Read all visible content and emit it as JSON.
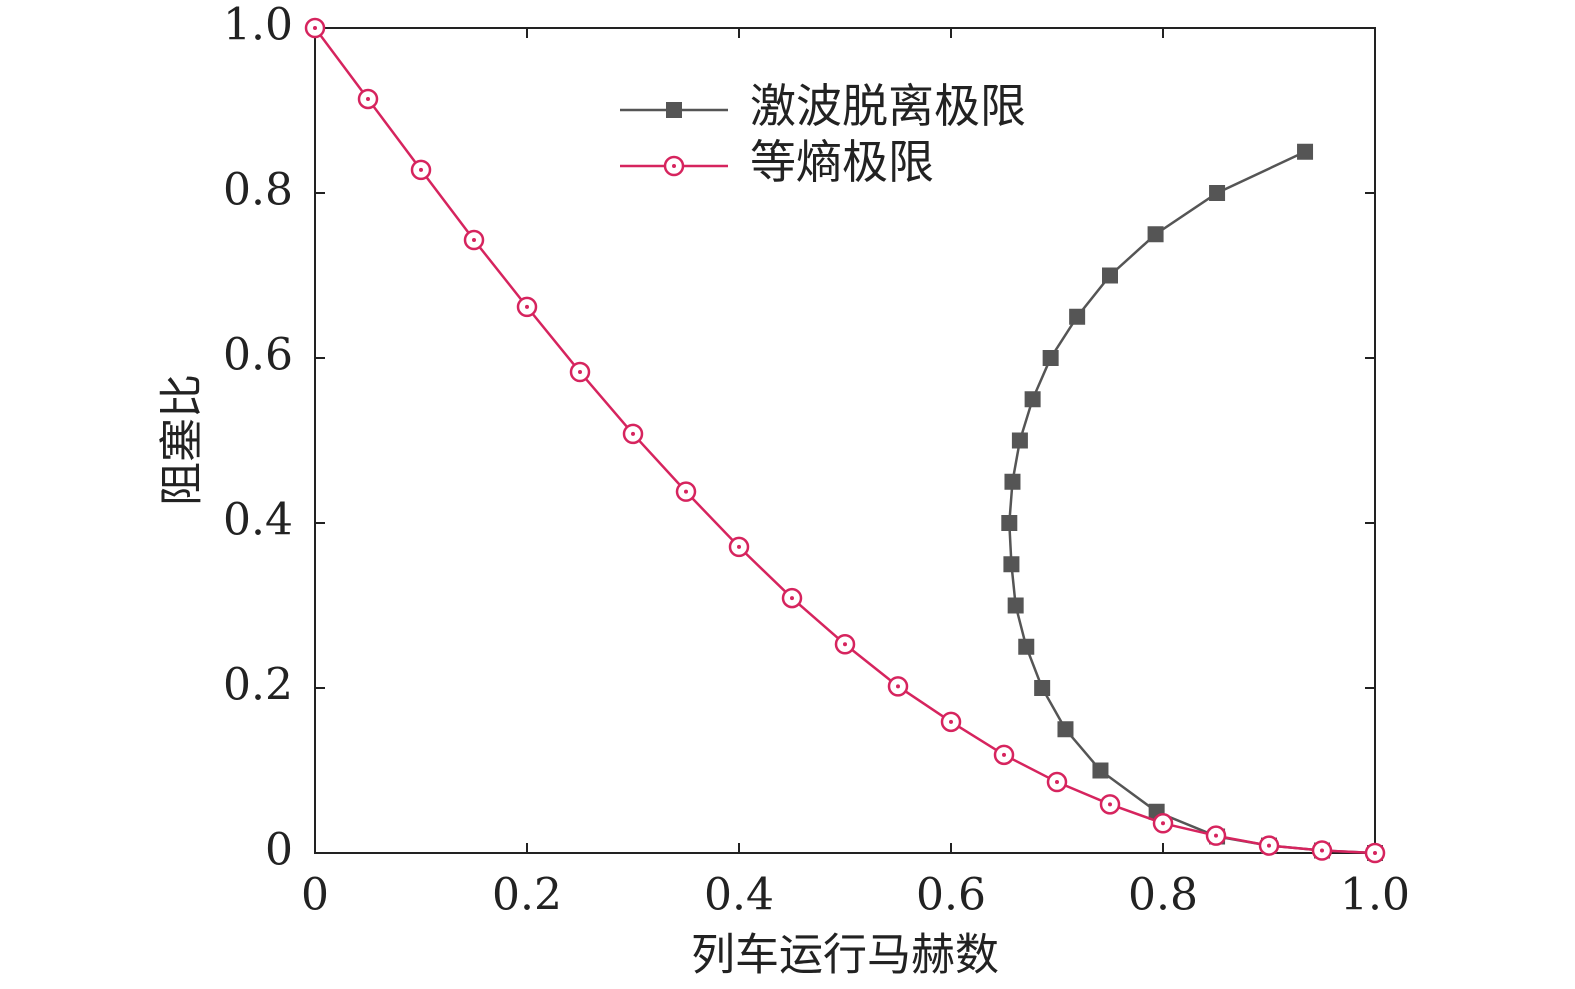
{
  "chart_data": {
    "type": "line",
    "x_label": "列车运行马赫数",
    "y_label": "阻塞比",
    "xlim": [
      0,
      1
    ],
    "ylim": [
      0,
      1
    ],
    "xticks": [
      0,
      0.2,
      0.4,
      0.6,
      0.8,
      {
        "value": 1,
        "label": "1.0"
      }
    ],
    "yticks": [
      0,
      0.2,
      0.4,
      0.6,
      0.8,
      {
        "value": 1,
        "label": "1.0"
      }
    ],
    "legend": "upper center",
    "series": [
      {
        "name": "激波脱离极限",
        "color": "#555555",
        "marker": "square",
        "x": [
          0.934,
          0.851,
          0.793,
          0.75,
          0.719,
          0.694,
          0.677,
          0.665,
          0.658,
          0.655,
          0.657,
          0.661,
          0.671,
          0.686,
          0.708,
          0.741,
          0.794,
          0.851,
          0.9,
          0.95,
          1
        ],
        "values": [
          0.85,
          0.8,
          0.75,
          0.7,
          0.65,
          0.6,
          0.55,
          0.5,
          0.45,
          0.4,
          0.35,
          0.3,
          0.25,
          0.2,
          0.15,
          0.1,
          0.05,
          0.02,
          0.009,
          0.003,
          0
        ]
      },
      {
        "name": "等熵极限",
        "color": "#d6245e",
        "marker": "circle",
        "x": [
          0,
          0.05,
          0.1,
          0.15,
          0.2,
          0.25,
          0.3,
          0.35,
          0.4,
          0.45,
          0.5,
          0.55,
          0.6,
          0.65,
          0.7,
          0.75,
          0.8,
          0.85,
          0.9,
          0.95,
          1
        ],
        "values": [
          1,
          0.914,
          0.828,
          0.743,
          0.662,
          0.583,
          0.508,
          0.438,
          0.371,
          0.309,
          0.253,
          0.202,
          0.159,
          0.119,
          0.086,
          0.059,
          0.036,
          0.021,
          0.009,
          0.003,
          0
        ]
      }
    ]
  }
}
